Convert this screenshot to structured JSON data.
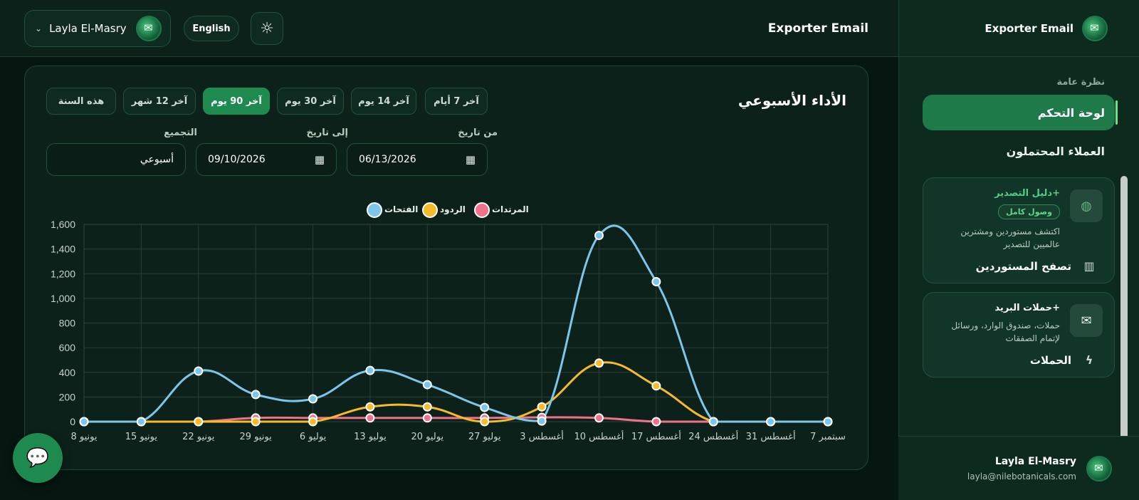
{
  "topbar": {
    "user_name": "Layla El-Masry",
    "language": "English",
    "title": "Exporter Email"
  },
  "sidebar": {
    "brand": "Exporter Email",
    "section_title": "نظرة عامة",
    "items": [
      {
        "label": "لوحة التحكم",
        "active": true
      },
      {
        "label": "العملاء المحتملون",
        "active": false
      }
    ],
    "cards": [
      {
        "title": "دليل التصدير+",
        "badge": "وصول كامل",
        "desc_line1": "اكتشف مستوردين ومشترين",
        "desc_line2": "عالميين للتصدير",
        "link": "تصفح المستوردين",
        "icon": "globe-icon",
        "link_icon": "building-icon"
      },
      {
        "title": "حملات البريد+",
        "desc_line1": "حملات، صندوق الوارد، ورسائل",
        "desc_line2": "لإتمام الصفقات",
        "link": "الحملات",
        "icon": "mail-icon",
        "link_icon": "bolt-icon"
      }
    ],
    "footer": {
      "name": "Layla El-Masry",
      "email": "layla@nilebotanicals.com"
    }
  },
  "panel": {
    "title": "الأداء الأسبوعي",
    "ranges": [
      "آخر 7 أيام",
      "آخر 14 يوم",
      "آخر 30 يوم",
      "آخر 90 يوم",
      "آخر 12 شهر",
      "هذه السنة"
    ],
    "active_range": "آخر 90 يوم",
    "from_label": "من تاريخ",
    "from_value": "06/13/2026",
    "to_label": "إلى تاريخ",
    "to_value": "09/10/2026",
    "group_label": "التجميع",
    "group_value": "أسبوعي"
  },
  "chart_data": {
    "type": "line",
    "categories": [
      "يونيو 8",
      "يونيو 15",
      "يونيو 22",
      "يونيو 29",
      "يوليو 6",
      "يوليو 13",
      "يوليو 20",
      "يوليو 27",
      "أغسطس 3",
      "أغسطس 10",
      "أغسطس 17",
      "أغسطس 24",
      "أغسطس 31",
      "سبتمبر 7"
    ],
    "series": [
      {
        "name": "الفتحات",
        "color": "#7cc6ea",
        "values": [
          0,
          0,
          410,
          220,
          185,
          415,
          300,
          115,
          5,
          1510,
          1135,
          0,
          0,
          0
        ]
      },
      {
        "name": "الردود",
        "color": "#f5bb2b",
        "values": [
          0,
          0,
          0,
          0,
          0,
          120,
          120,
          0,
          120,
          475,
          290,
          0,
          0,
          0
        ]
      },
      {
        "name": "المرتدات",
        "color": "#f0728a",
        "values": [
          0,
          0,
          0,
          30,
          30,
          30,
          30,
          30,
          35,
          30,
          0,
          0,
          0,
          0
        ]
      }
    ],
    "yticks": [
      "0",
      "200",
      "400",
      "600",
      "800",
      "1,000",
      "1,200",
      "1,400",
      "1,600"
    ],
    "ylim": [
      0,
      1600
    ],
    "grid": true,
    "legend": "top-center"
  }
}
